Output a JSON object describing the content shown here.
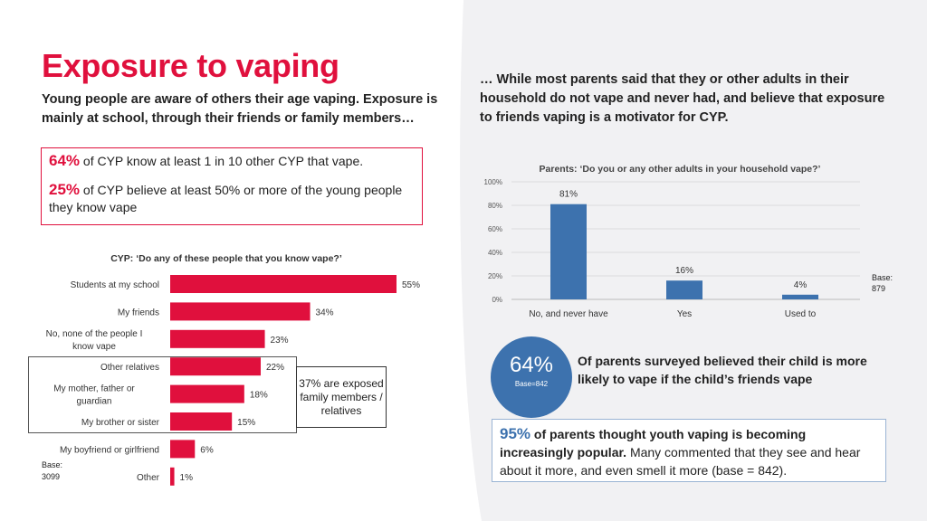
{
  "header": {
    "title": "Exposure to vaping",
    "subtitle": "Young people are aware of others their age vaping. Exposure is mainly at school, through their friends or family members…"
  },
  "right_intro": "… While most parents said that they or other adults in their household do not vape and never had, and believe that exposure to friends vaping is a motivator for CYP.",
  "stats_box": {
    "stat1_pct": "64%",
    "stat1_text": "of CYP know at least 1 in 10 other CYP that vape.",
    "stat2_pct": "25%",
    "stat2_text": "of CYP believe at least 50% or more of the young people they know vape"
  },
  "callout": "37% are exposed family members / relatives",
  "bubble": {
    "pct": "64%",
    "base": "Base=842",
    "text": "Of parents surveyed believed their child is more likely to vape if the child’s friends vape"
  },
  "blue_box": {
    "pct": "95%",
    "bold_text": "of parents thought youth vaping is becoming increasingly popular.",
    "text": "Many commented that they see and hear about it more, and even smell it more (base = 842)."
  },
  "colors": {
    "red": "#e0103d",
    "blue": "#3d72ae"
  },
  "chart_data": [
    {
      "type": "bar",
      "orientation": "horizontal",
      "title": "CYP: ‘Do any of these people that you know vape?’",
      "categories": [
        "Students at my school",
        "My friends",
        "No, none of the people I know vape",
        "Other relatives",
        "My mother, father or guardian",
        "My brother or sister",
        "My boyfriend or girlfriend",
        "Other"
      ],
      "values": [
        55,
        34,
        23,
        22,
        18,
        15,
        6,
        1
      ],
      "value_labels": [
        "55%",
        "34%",
        "23%",
        "22%",
        "18%",
        "15%",
        "6%",
        "1%"
      ],
      "xlim": [
        0,
        55
      ],
      "base_label": "Base:",
      "base_value": "3099",
      "grid": false
    },
    {
      "type": "bar",
      "orientation": "vertical",
      "title": "Parents: ‘Do you or any other adults in your household vape?’",
      "categories": [
        "No, and never have",
        "Yes",
        "Used to"
      ],
      "values": [
        81,
        16,
        4
      ],
      "value_labels": [
        "81%",
        "16%",
        "4%"
      ],
      "ylim": [
        0,
        100
      ],
      "yticks": [
        "0%",
        "20%",
        "40%",
        "60%",
        "80%",
        "100%"
      ],
      "base_label": "Base:",
      "base_value": "879",
      "grid": true
    }
  ]
}
